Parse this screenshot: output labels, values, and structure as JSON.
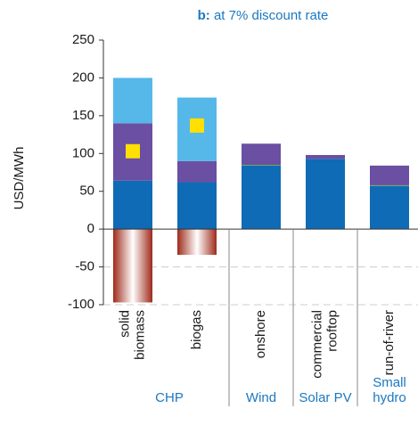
{
  "chart_data": {
    "type": "bar",
    "stacked": true,
    "title_prefix": "b:",
    "title": "at 7% discount rate",
    "ylabel": "USD/MWh",
    "categories": [
      [
        "solid",
        "biomass"
      ],
      [
        "biogas"
      ],
      [
        "onshore"
      ],
      [
        "commercial",
        "rooftop"
      ],
      [
        "run-of-river"
      ]
    ],
    "groups": [
      {
        "name": [
          "CHP"
        ],
        "size": 2
      },
      {
        "name": [
          "Wind"
        ],
        "size": 1
      },
      {
        "name": [
          "Solar PV"
        ],
        "size": 1
      },
      {
        "name": [
          "Small",
          "hydro"
        ],
        "size": 1
      }
    ],
    "series": [
      {
        "color": "#0f6bb5",
        "values": [
          64,
          62,
          84,
          93,
          57
        ]
      },
      {
        "color": "#5ca843",
        "values": [
          null,
          null,
          1,
          null,
          1
        ]
      },
      {
        "color": "#6a4fa3",
        "values": [
          76,
          28,
          28,
          5,
          26
        ]
      },
      {
        "color": "#55b8e8",
        "values": [
          60,
          84,
          null,
          null,
          null
        ]
      },
      {
        "color": "#9e2a1a",
        "gradient": true,
        "values": [
          -97,
          -34,
          null,
          null,
          null
        ]
      }
    ],
    "markers": {
      "color": "#ffe000",
      "values": [
        103,
        137,
        null,
        null,
        null
      ]
    },
    "ylim": [
      -100,
      250
    ],
    "yticks": [
      -100,
      -50,
      0,
      50,
      100,
      150,
      200,
      250
    ]
  }
}
